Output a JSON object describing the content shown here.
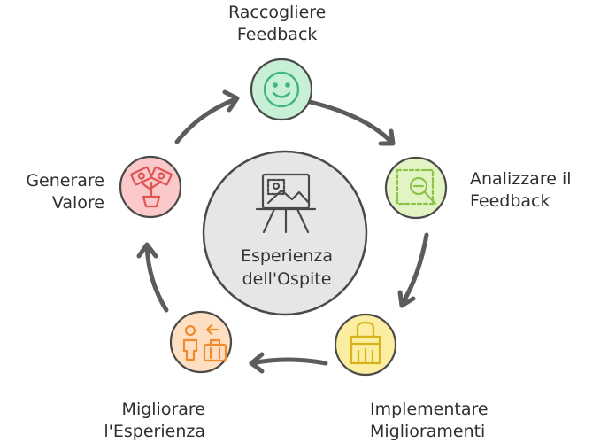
{
  "center": {
    "line1": "Esperienza",
    "line2": "dell'Ospite",
    "icon": "easel-picture-icon"
  },
  "steps": [
    {
      "line1": "Raccogliere",
      "line2": "Feedback",
      "icon": "smiley-face-icon",
      "fill": "#c8f0d6",
      "stroke": "#4a4a4a"
    },
    {
      "line1": "Analizzare il",
      "line2": "Feedback",
      "icon": "magnify-analysis-icon",
      "fill": "#e2f4c3",
      "stroke": "#4a4a4a"
    },
    {
      "line1": "Implementare",
      "line2": "Miglioramenti",
      "icon": "paint-brush-icon",
      "fill": "#fbeea1",
      "stroke": "#4a4a4a"
    },
    {
      "line1": "Migliorare",
      "line2": "l'Esperienza",
      "icon": "traveler-luggage-icon",
      "fill": "#ffdfc2",
      "stroke": "#4a4a4a"
    },
    {
      "line1": "Generare",
      "line2": "Valore",
      "icon": "money-plant-icon",
      "fill": "#fbc9c9",
      "stroke": "#4a4a4a"
    }
  ],
  "colors": {
    "center_fill": "#e6e6e6",
    "arrow": "#5c5c5c",
    "icon_green": "#3fb77a",
    "icon_lime": "#8bc34a",
    "icon_yellow": "#d7b21b",
    "icon_orange": "#f08a2c",
    "icon_red": "#e15454"
  }
}
